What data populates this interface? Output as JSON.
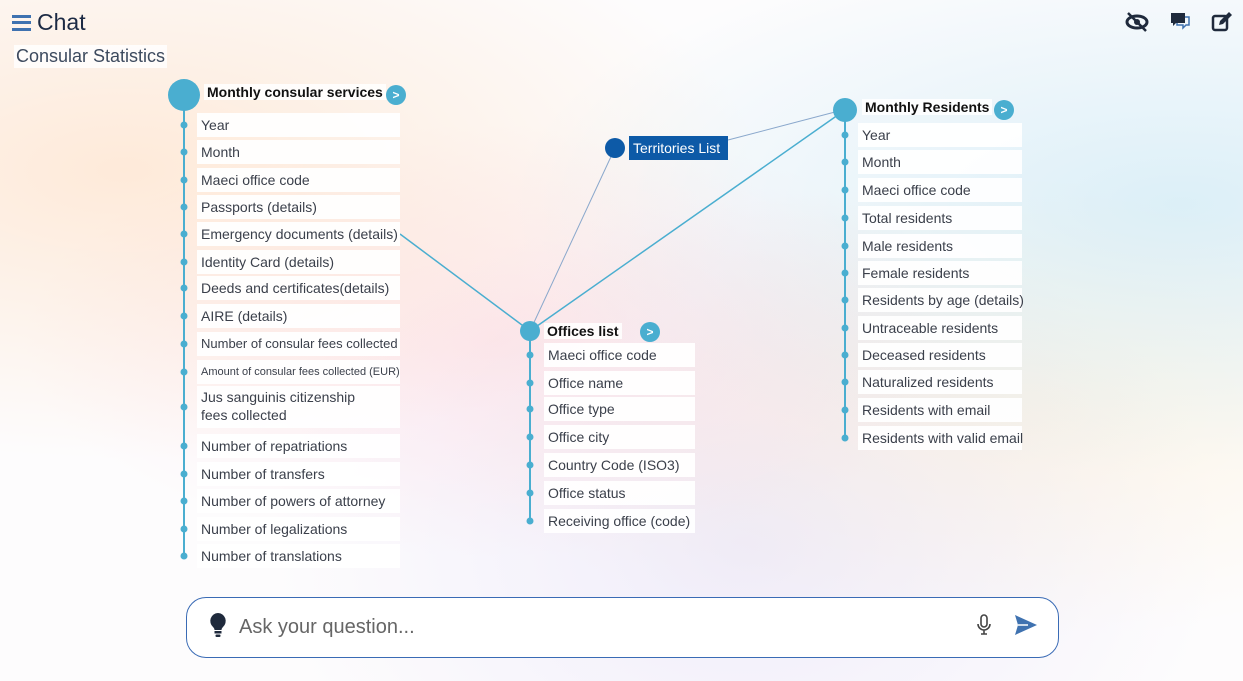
{
  "header": {
    "title": "Chat",
    "subtitle": "Consular Statistics",
    "icons": [
      "menu-icon",
      "eye-slash-icon",
      "comments-icon",
      "edit-icon"
    ]
  },
  "tables": {
    "consular": {
      "title": "Monthly consular services",
      "items": [
        "Year",
        "Month",
        "Maeci office code",
        "Passports (details)",
        "Emergency documents (details)",
        "Identity Card (details)",
        "Deeds and certificates(details)",
        "AIRE (details)",
        "Number of consular fees collected",
        "Amount of consular fees collected (EUR)",
        "Jus sanguinis citizenship fees collected",
        "Number of repatriations",
        "Number of transfers",
        "Number of powers of attorney",
        "Number of legalizations",
        "Number of translations"
      ]
    },
    "offices": {
      "title": "Offices list",
      "items": [
        "Maeci office code",
        "Office name",
        "Office type",
        "Office city",
        "Country Code (ISO3)",
        "Office status",
        "Receiving office (code)"
      ]
    },
    "residents": {
      "title": "Monthly Residents",
      "items": [
        "Year",
        "Month",
        "Maeci office code",
        "Total residents",
        "Male residents",
        "Female residents",
        "Residents by age (details)",
        "Untraceable residents",
        "Deceased residents",
        "Naturalized residents",
        "Residents with email",
        "Residents with valid email"
      ]
    },
    "territories": {
      "title": "Territories List"
    }
  },
  "expand_label": ">",
  "chat": {
    "placeholder": "Ask your question..."
  },
  "colors": {
    "node": "#4aaed0",
    "territory": "#0d5aa7",
    "border": "#3a6bb5"
  }
}
